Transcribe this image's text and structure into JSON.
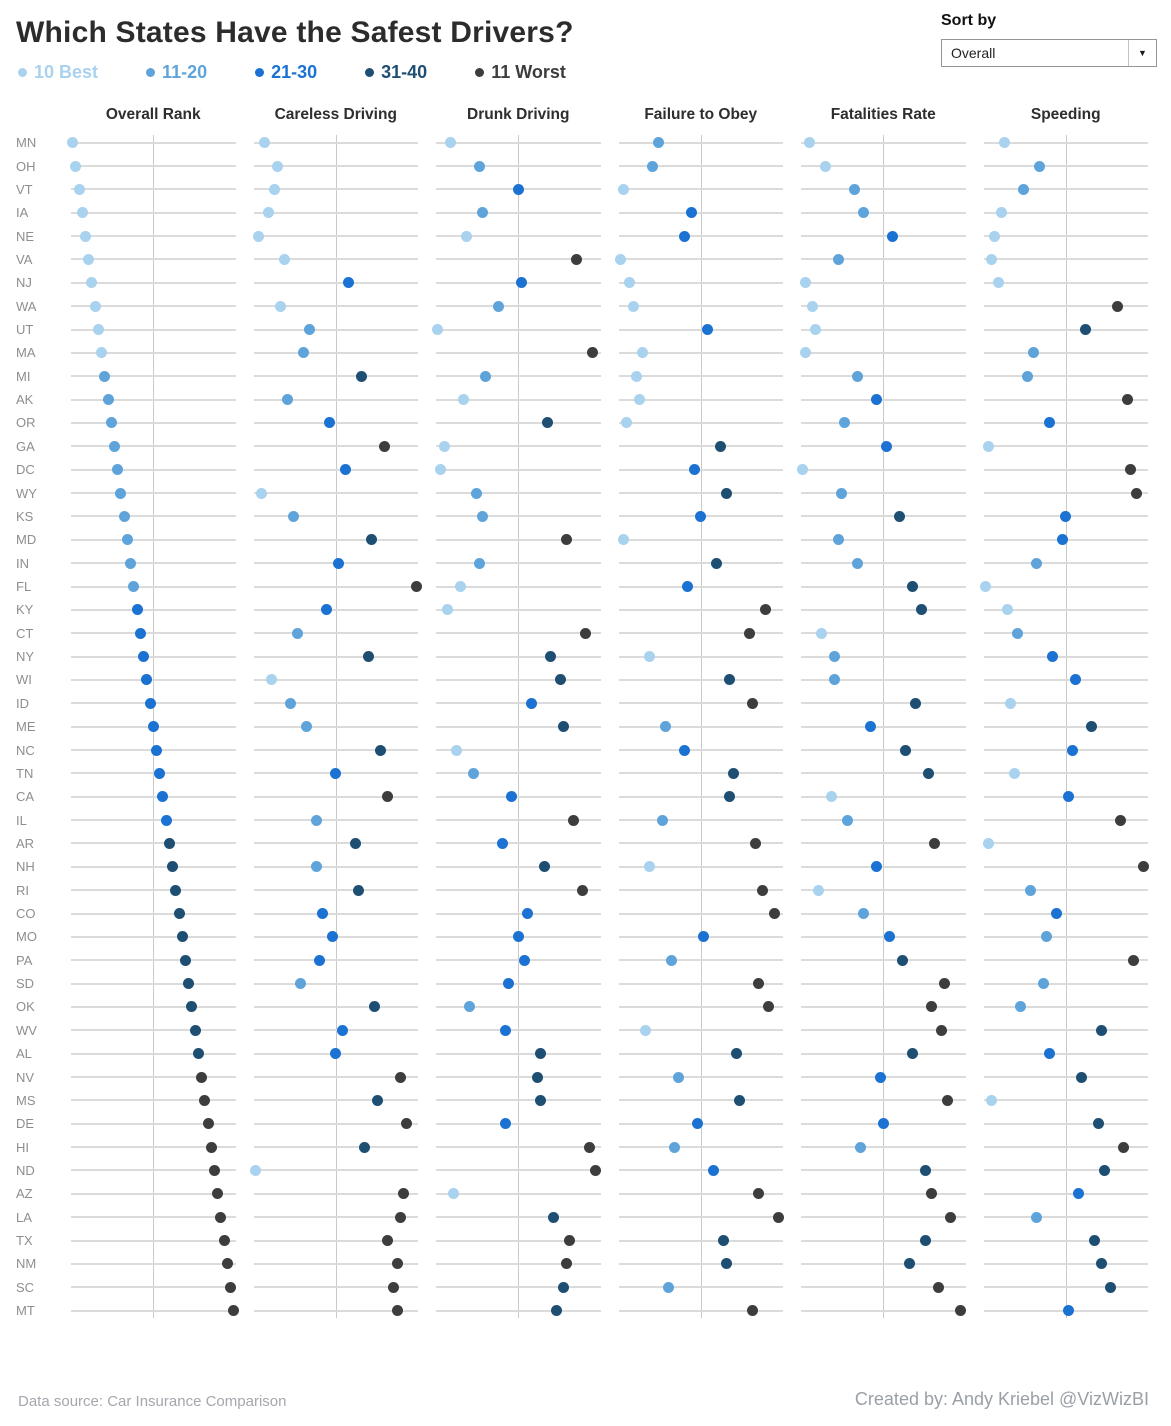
{
  "title": "Which States Have the Safest Drivers?",
  "sort_by": {
    "label": "Sort by",
    "value": "Overall"
  },
  "footer": {
    "source": "Data source: Car Insurance Comparison",
    "credit": "Created by: Andy Kriebel @VizWizBI"
  },
  "chart_data": {
    "type": "scatter",
    "subtype": "ranked-dot-plot",
    "title": "Which States Have the Safest Drivers?",
    "rank_axis": {
      "min": 1,
      "max": 51,
      "note": "rank 1 = safest, plotted left to right"
    },
    "legend_position": "top",
    "color_buckets": [
      {
        "label": "10 Best",
        "min": 1,
        "max": 10,
        "color": "#a9d2ef"
      },
      {
        "label": "11-20",
        "min": 11,
        "max": 20,
        "color": "#5ea4da"
      },
      {
        "label": "21-30",
        "min": 21,
        "max": 30,
        "color": "#1b72d3"
      },
      {
        "label": "31-40",
        "min": 31,
        "max": 40,
        "color": "#1f4e73"
      },
      {
        "label": "11 Worst",
        "min": 41,
        "max": 51,
        "color": "#3d3d3d"
      }
    ],
    "columns": [
      "Overall Rank",
      "Careless Driving",
      "Drunk Driving",
      "Failure to Obey",
      "Fatalities Rate",
      "Speeding"
    ],
    "states": [
      {
        "abbr": "MN",
        "ranks": [
          1,
          4,
          5,
          13,
          3,
          7
        ]
      },
      {
        "abbr": "OH",
        "ranks": [
          2,
          8,
          14,
          11,
          8,
          18
        ]
      },
      {
        "abbr": "VT",
        "ranks": [
          3,
          7,
          26,
          2,
          17,
          13
        ]
      },
      {
        "abbr": "IA",
        "ranks": [
          4,
          5,
          15,
          23,
          20,
          6
        ]
      },
      {
        "abbr": "NE",
        "ranks": [
          5,
          2,
          10,
          21,
          29,
          4
        ]
      },
      {
        "abbr": "VA",
        "ranks": [
          6,
          10,
          44,
          1,
          12,
          3
        ]
      },
      {
        "abbr": "NJ",
        "ranks": [
          7,
          30,
          27,
          4,
          2,
          5
        ]
      },
      {
        "abbr": "WA",
        "ranks": [
          8,
          9,
          20,
          5,
          4,
          42
        ]
      },
      {
        "abbr": "UT",
        "ranks": [
          9,
          18,
          1,
          28,
          5,
          32
        ]
      },
      {
        "abbr": "MA",
        "ranks": [
          10,
          16,
          49,
          8,
          2,
          16
        ]
      },
      {
        "abbr": "MI",
        "ranks": [
          11,
          34,
          16,
          6,
          18,
          14
        ]
      },
      {
        "abbr": "AK",
        "ranks": [
          12,
          11,
          9,
          7,
          24,
          45
        ]
      },
      {
        "abbr": "OR",
        "ranks": [
          13,
          24,
          35,
          3,
          14,
          21
        ]
      },
      {
        "abbr": "GA",
        "ranks": [
          14,
          41,
          3,
          32,
          27,
          2
        ]
      },
      {
        "abbr": "DC",
        "ranks": [
          15,
          29,
          2,
          24,
          1,
          46
        ]
      },
      {
        "abbr": "WY",
        "ranks": [
          16,
          3,
          13,
          34,
          13,
          48
        ]
      },
      {
        "abbr": "KS",
        "ranks": [
          17,
          13,
          15,
          26,
          31,
          26
        ]
      },
      {
        "abbr": "MD",
        "ranks": [
          18,
          37,
          41,
          2,
          12,
          25
        ]
      },
      {
        "abbr": "IN",
        "ranks": [
          19,
          27,
          14,
          31,
          18,
          17
        ]
      },
      {
        "abbr": "FL",
        "ranks": [
          20,
          51,
          8,
          22,
          35,
          1
        ]
      },
      {
        "abbr": "KY",
        "ranks": [
          21,
          23,
          4,
          46,
          38,
          8
        ]
      },
      {
        "abbr": "CT",
        "ranks": [
          22,
          14,
          47,
          41,
          7,
          11
        ]
      },
      {
        "abbr": "NY",
        "ranks": [
          23,
          36,
          36,
          10,
          11,
          22
        ]
      },
      {
        "abbr": "WI",
        "ranks": [
          24,
          6,
          39,
          35,
          11,
          29
        ]
      },
      {
        "abbr": "ID",
        "ranks": [
          25,
          12,
          30,
          42,
          36,
          9
        ]
      },
      {
        "abbr": "ME",
        "ranks": [
          26,
          17,
          40,
          15,
          22,
          34
        ]
      },
      {
        "abbr": "NC",
        "ranks": [
          27,
          40,
          7,
          21,
          33,
          28
        ]
      },
      {
        "abbr": "TN",
        "ranks": [
          28,
          26,
          12,
          36,
          40,
          10
        ]
      },
      {
        "abbr": "CA",
        "ranks": [
          29,
          42,
          24,
          35,
          10,
          27
        ]
      },
      {
        "abbr": "IL",
        "ranks": [
          30,
          20,
          43,
          14,
          15,
          43
        ]
      },
      {
        "abbr": "AR",
        "ranks": [
          31,
          32,
          21,
          43,
          42,
          2
        ]
      },
      {
        "abbr": "NH",
        "ranks": [
          32,
          20,
          34,
          10,
          24,
          50
        ]
      },
      {
        "abbr": "RI",
        "ranks": [
          33,
          33,
          46,
          45,
          6,
          15
        ]
      },
      {
        "abbr": "CO",
        "ranks": [
          34,
          22,
          29,
          49,
          20,
          23
        ]
      },
      {
        "abbr": "MO",
        "ranks": [
          35,
          25,
          26,
          27,
          28,
          20
        ]
      },
      {
        "abbr": "PA",
        "ranks": [
          36,
          21,
          28,
          17,
          32,
          47
        ]
      },
      {
        "abbr": "SD",
        "ranks": [
          37,
          15,
          23,
          44,
          45,
          19
        ]
      },
      {
        "abbr": "OK",
        "ranks": [
          38,
          38,
          11,
          47,
          41,
          12
        ]
      },
      {
        "abbr": "WV",
        "ranks": [
          39,
          28,
          22,
          9,
          44,
          37
        ]
      },
      {
        "abbr": "AL",
        "ranks": [
          40,
          26,
          33,
          37,
          35,
          21
        ]
      },
      {
        "abbr": "NV",
        "ranks": [
          41,
          46,
          32,
          19,
          25,
          31
        ]
      },
      {
        "abbr": "MS",
        "ranks": [
          42,
          39,
          33,
          38,
          46,
          3
        ]
      },
      {
        "abbr": "DE",
        "ranks": [
          43,
          48,
          22,
          25,
          26,
          36
        ]
      },
      {
        "abbr": "HI",
        "ranks": [
          44,
          35,
          48,
          18,
          19,
          44
        ]
      },
      {
        "abbr": "ND",
        "ranks": [
          45,
          1,
          50,
          30,
          39,
          38
        ]
      },
      {
        "abbr": "AZ",
        "ranks": [
          46,
          47,
          6,
          44,
          41,
          30
        ]
      },
      {
        "abbr": "LA",
        "ranks": [
          47,
          46,
          37,
          50,
          47,
          17
        ]
      },
      {
        "abbr": "TX",
        "ranks": [
          48,
          42,
          42,
          33,
          39,
          35
        ]
      },
      {
        "abbr": "NM",
        "ranks": [
          49,
          45,
          41,
          34,
          34,
          37
        ]
      },
      {
        "abbr": "SC",
        "ranks": [
          50,
          44,
          40,
          16,
          43,
          40
        ]
      },
      {
        "abbr": "MT",
        "ranks": [
          51,
          45,
          38,
          42,
          50,
          27
        ]
      }
    ]
  }
}
